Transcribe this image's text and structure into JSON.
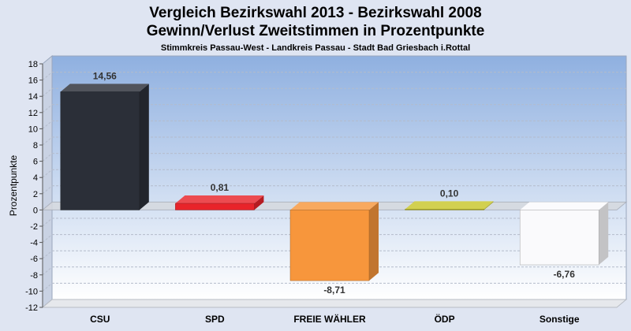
{
  "header": {
    "title_line1": "Vergleich Bezirkswahl 2013 - Bezirkswahl 2008",
    "title_line2": "Gewinn/Verlust Zweitstimmen in Prozentpunkte",
    "subtitle": "Stimmkreis Passau-West - Landkreis Passau - Stadt Bad Griesbach i.Rottal"
  },
  "chart_data": {
    "type": "bar",
    "title": "Vergleich Bezirkswahl 2013 - Bezirkswahl 2008 / Gewinn/Verlust Zweitstimmen in Prozentpunkte",
    "subtitle": "Stimmkreis Passau-West - Landkreis Passau - Stadt Bad Griesbach i.Rottal",
    "xlabel": "",
    "ylabel": "Prozentpunkte",
    "ylim": [
      -12,
      18
    ],
    "yticks": [
      -12,
      -10,
      -8,
      -6,
      -4,
      -2,
      0,
      2,
      4,
      6,
      8,
      10,
      12,
      14,
      16,
      18
    ],
    "grid": true,
    "categories": [
      "CSU",
      "SPD",
      "FREIE WÄHLER",
      "ÖDP",
      "Sonstige"
    ],
    "values": [
      14.56,
      0.81,
      -8.71,
      0.1,
      -6.76
    ],
    "value_labels": [
      "14,56",
      "0,81",
      "-8,71",
      "0,10",
      "-6,76"
    ],
    "colors": [
      "#2b2f38",
      "#e8242a",
      "#f7963c",
      "#c8c62a",
      "#fafafc"
    ]
  }
}
